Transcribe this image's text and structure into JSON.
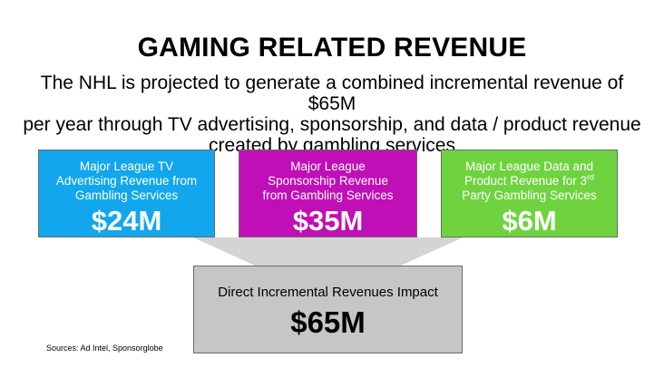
{
  "title": "GAMING RELATED REVENUE",
  "subtitle": {
    "line1": "The NHL is projected to generate a combined incremental revenue of $65M",
    "line2": "per year through TV advertising, sponsorship, and data / product revenue",
    "line3": "created by gambling services"
  },
  "boxes": [
    {
      "label_line1": "Major League TV",
      "label_line2": "Advertising Revenue from",
      "label_line3": "Gambling Services",
      "value": "$24M",
      "color": "#12a6ec"
    },
    {
      "label_line1": "Major League",
      "label_line2": "Sponsorship Revenue",
      "label_line3": "from Gambling Services",
      "value": "$35M",
      "color": "#c00fb6"
    },
    {
      "label_line1": "Major League Data and",
      "label_line2_prefix": "Product Revenue for 3",
      "label_line2_sup": "rd",
      "label_line3": "Party Gambling Services",
      "value": "$6M",
      "color": "#6fd33f"
    }
  ],
  "total": {
    "label": "Direct Incremental Revenues Impact",
    "value": "$65M",
    "color": "#c6c6c6"
  },
  "sources": "Sources: Ad Intel, Sponsorglobe"
}
